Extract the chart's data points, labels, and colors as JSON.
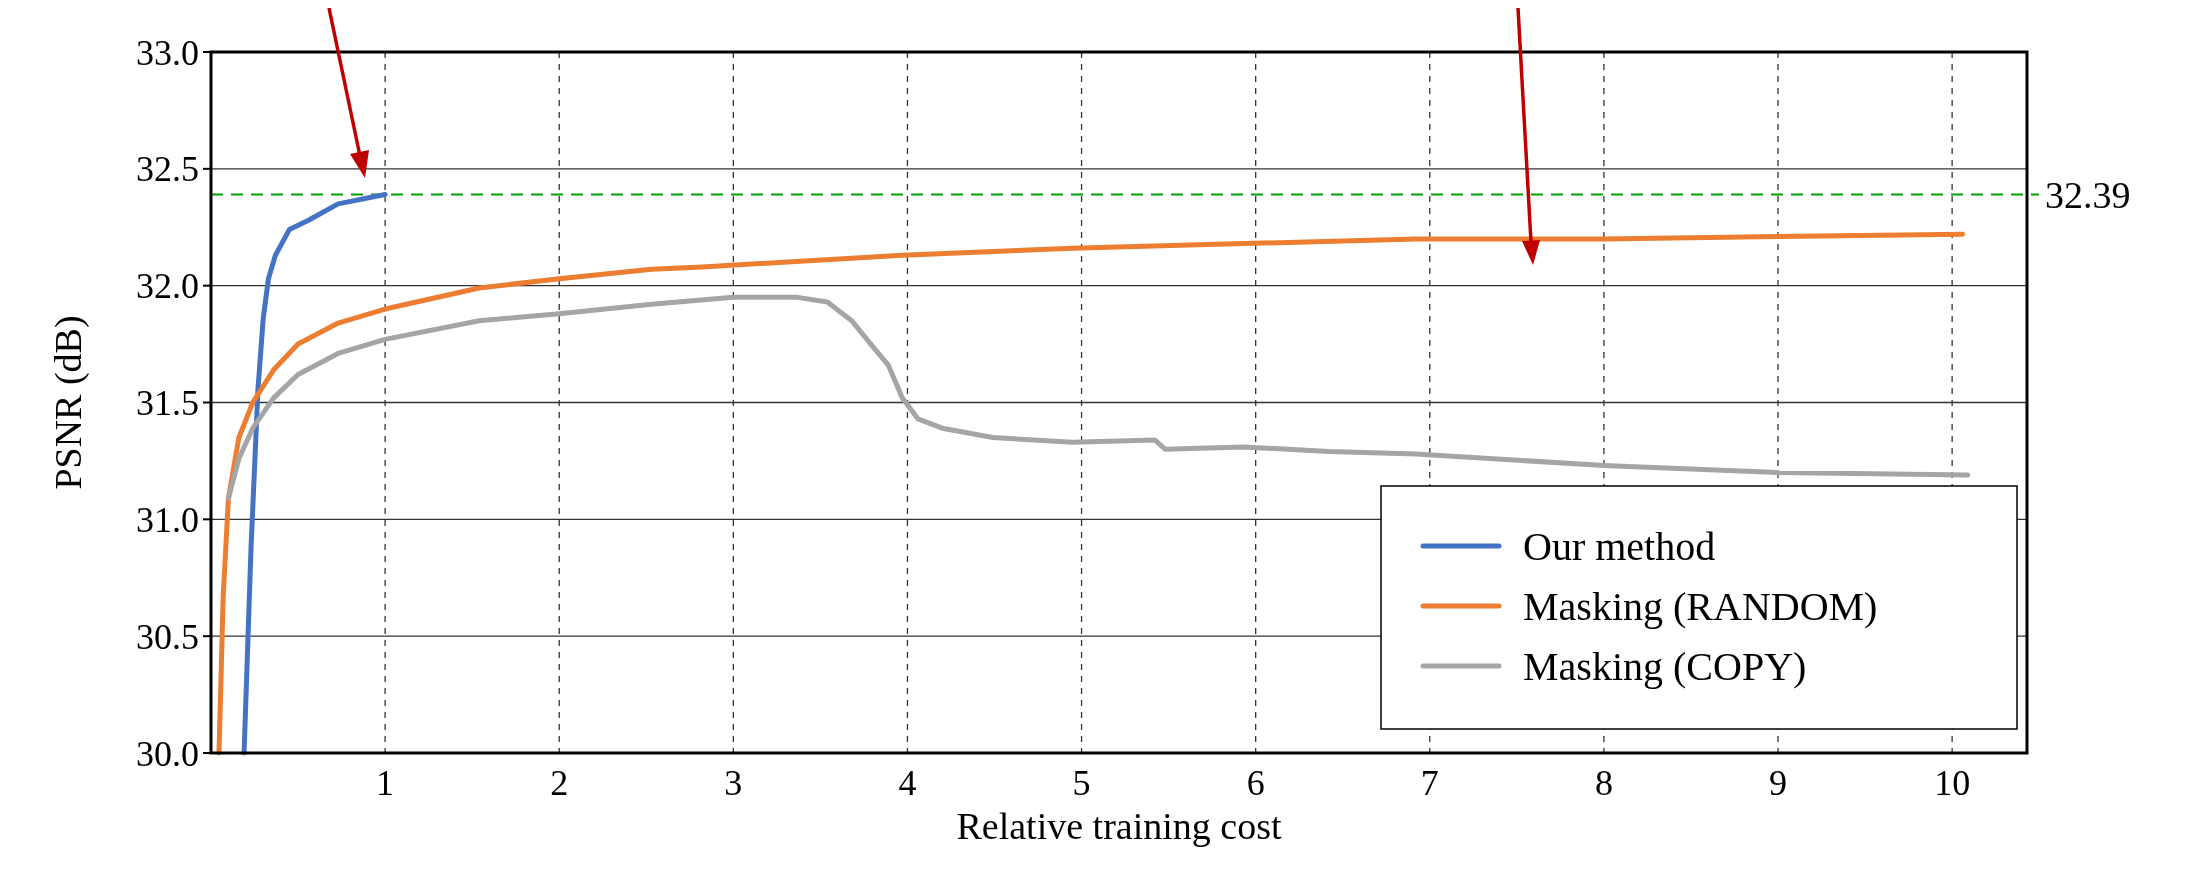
{
  "chart_data": {
    "type": "line",
    "xlabel": "Relative training cost",
    "ylabel": "PSNR (dB)",
    "xlim": [
      0,
      10.43
    ],
    "xticks": [
      1,
      2,
      3,
      4,
      5,
      6,
      7,
      8,
      9,
      10
    ],
    "ylim": [
      30,
      33
    ],
    "yticks": [
      {
        "value": 30,
        "label": "30.0"
      },
      {
        "value": 30.5,
        "label": "30.5"
      },
      {
        "value": 31,
        "label": "31.0"
      },
      {
        "value": 31.5,
        "label": "31.5"
      },
      {
        "value": 32,
        "label": "32.0"
      },
      {
        "value": 32.5,
        "label": "32.5"
      },
      {
        "value": 33,
        "label": "33.0"
      }
    ],
    "grid": true,
    "legend": "bottom right",
    "line_style": "solid",
    "marker": "none",
    "ref_lines": [
      {
        "axis": "y",
        "value": 32.39,
        "label": "32.39",
        "color": "#00a000",
        "line_style": "dashed"
      }
    ],
    "series": [
      {
        "name": "Our method",
        "color": "#4472c4",
        "x": [
          0.19,
          0.23,
          0.27,
          0.3,
          0.33,
          0.37,
          0.45,
          0.56,
          0.73,
          1.0
        ],
        "values": [
          30,
          30.88,
          31.56,
          31.86,
          32.03,
          32.13,
          32.24,
          32.28,
          32.35,
          32.39
        ]
      },
      {
        "name": "Masking (RANDOM)",
        "color": "#ed7d31",
        "x": [
          0.046,
          0.07,
          0.1,
          0.16,
          0.24,
          0.36,
          0.5,
          0.73,
          1.0,
          1.54,
          2.0,
          2.53,
          2.82,
          3.97,
          4.95,
          5.93,
          6.92,
          8.0,
          9.0,
          10.06
        ],
        "values": [
          30,
          30.67,
          31.09,
          31.35,
          31.5,
          31.64,
          31.75,
          31.84,
          31.9,
          31.99,
          32.03,
          32.07,
          32.08,
          32.13,
          32.16,
          32.18,
          32.2,
          32.2,
          32.21,
          32.22
        ]
      },
      {
        "name": "Masking (COPY)",
        "color": "#a5a5a5",
        "x": [
          0.1,
          0.16,
          0.24,
          0.36,
          0.5,
          0.73,
          1.0,
          1.54,
          2.0,
          2.53,
          3.0,
          3.37,
          3.54,
          3.68,
          3.8,
          3.89,
          3.97,
          4.06,
          4.2,
          4.49,
          4.95,
          5.42,
          5.48,
          5.93,
          6.42,
          6.92,
          8.0,
          9.0,
          10.09
        ],
        "values": [
          31.09,
          31.26,
          31.39,
          31.52,
          31.62,
          31.71,
          31.77,
          31.85,
          31.88,
          31.92,
          31.95,
          31.95,
          31.93,
          31.85,
          31.74,
          31.66,
          31.52,
          31.43,
          31.39,
          31.35,
          31.33,
          31.34,
          31.3,
          31.31,
          31.29,
          31.28,
          31.23,
          31.2,
          31.19
        ]
      }
    ]
  }
}
